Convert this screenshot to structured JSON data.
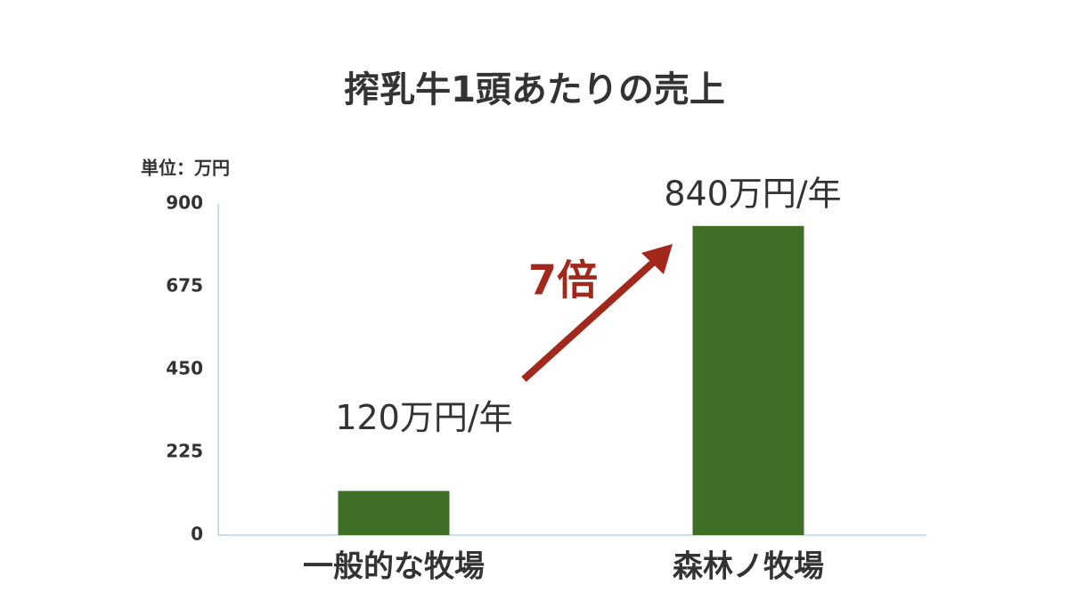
{
  "chart_data": {
    "type": "bar",
    "title": "搾乳牛1頭あたりの売上",
    "unit_label": "単位：万円",
    "categories": [
      "一般的な牧場",
      "森林ノ牧場"
    ],
    "values": [
      120,
      840
    ],
    "value_labels": [
      "120万円/年",
      "840万円/年"
    ],
    "color": "#3f6f27",
    "annotation": "7倍",
    "annotation_color": "#a3281c",
    "ylim": [
      0,
      900
    ],
    "yticks": [
      0,
      225,
      450,
      675,
      900
    ],
    "grid": false
  }
}
